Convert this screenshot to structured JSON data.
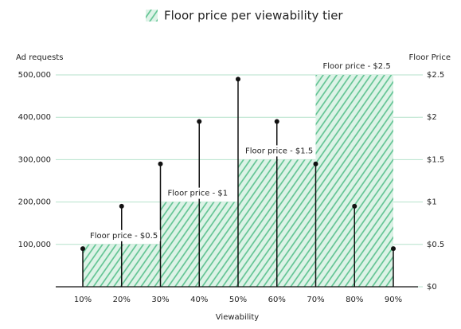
{
  "chart_data": {
    "type": "lollipop-tiers",
    "legend": "Floor price per viewability tier",
    "y_label": "Ad requests",
    "y2_label": "Floor Price",
    "x_label": "Viewability",
    "categories": [
      "10%",
      "20%",
      "30%",
      "40%",
      "50%",
      "60%",
      "70%",
      "80%",
      "90%"
    ],
    "values": [
      90000,
      190000,
      290000,
      390000,
      490000,
      390000,
      290000,
      190000,
      90000
    ],
    "color": "#111111",
    "tier_color": "#5cc18f",
    "tiers": [
      {
        "from": "10%",
        "to": "30%",
        "value": 0.5,
        "label": "Floor price - $0.5"
      },
      {
        "from": "30%",
        "to": "50%",
        "value": 1,
        "label": "Floor price - $1"
      },
      {
        "from": "50%",
        "to": "70%",
        "value": 1.5,
        "label": "Floor price - $1.5"
      },
      {
        "from": "70%",
        "to": "90%",
        "value": 2.5,
        "label": "Floor price - $2.5"
      }
    ],
    "ylim": [
      0,
      500000
    ],
    "yticks": [
      {
        "value": 100000,
        "label": "100,000"
      },
      {
        "value": 200000,
        "label": "200,000"
      },
      {
        "value": 300000,
        "label": "300,000"
      },
      {
        "value": 400000,
        "label": "400,000"
      },
      {
        "value": 500000,
        "label": "500,000"
      }
    ],
    "y2lim": [
      0,
      2.5
    ],
    "y2ticks": [
      {
        "value": 0,
        "label": "$0"
      },
      {
        "value": 0.5,
        "label": "$0.5"
      },
      {
        "value": 1,
        "label": "$1"
      },
      {
        "value": 1.5,
        "label": "$1.5"
      },
      {
        "value": 2,
        "label": "$2"
      },
      {
        "value": 2.5,
        "label": "$2.5"
      }
    ],
    "grid": true
  }
}
